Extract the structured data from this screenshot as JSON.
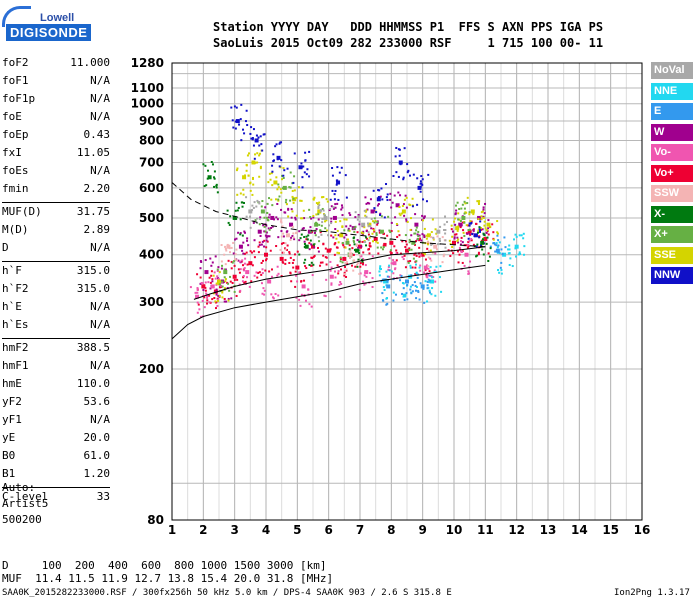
{
  "logo": {
    "top": "Lowell",
    "main": "DIGISONDE"
  },
  "header": {
    "labels_line": "Station YYYY DAY   DDD HHMMSS P1  FFS S AXN PPS IGA PS",
    "values_line": "SaoLuis 2015 Oct09 282 233000 RSF     1 715 100 00- 11"
  },
  "params": [
    {
      "label": "foF2",
      "value": "11.000"
    },
    {
      "label": "foF1",
      "value": "N/A"
    },
    {
      "label": "foF1p",
      "value": "N/A"
    },
    {
      "label": "foE",
      "value": "N/A"
    },
    {
      "label": "foEp",
      "value": "0.43"
    },
    {
      "label": "fxI",
      "value": "11.05"
    },
    {
      "label": "foEs",
      "value": "N/A"
    },
    {
      "label": "fmin",
      "value": "2.20"
    },
    {
      "label": "MUF(D)",
      "value": "31.75"
    },
    {
      "label": "M(D)",
      "value": "2.89"
    },
    {
      "label": "D",
      "value": "N/A"
    },
    {
      "label": "h`F",
      "value": "315.0"
    },
    {
      "label": "h`F2",
      "value": "315.0"
    },
    {
      "label": "h`E",
      "value": "N/A"
    },
    {
      "label": "h`Es",
      "value": "N/A"
    },
    {
      "label": "hmF2",
      "value": "388.5"
    },
    {
      "label": "hmF1",
      "value": "N/A"
    },
    {
      "label": "hmE",
      "value": "110.0"
    },
    {
      "label": "yF2",
      "value": "53.6"
    },
    {
      "label": "yF1",
      "value": "N/A"
    },
    {
      "label": "yE",
      "value": "20.0"
    },
    {
      "label": "B0",
      "value": "61.0"
    },
    {
      "label": "B1",
      "value": "1.20"
    },
    {
      "label": "C-level",
      "value": "33"
    }
  ],
  "auto": {
    "line1": "Auto:",
    "line2": "Artist5",
    "line3": "500200"
  },
  "legend": [
    {
      "label": "NoVal",
      "color": "#a8a8a8"
    },
    {
      "label": "NNE",
      "color": "#22d8f0"
    },
    {
      "label": "E",
      "color": "#3399ee"
    },
    {
      "label": "W",
      "color": "#a0008e"
    },
    {
      "label": "Vo-",
      "color": "#f055b0"
    },
    {
      "label": "Vo+",
      "color": "#ee0033"
    },
    {
      "label": "SSW",
      "color": "#f4b4b4"
    },
    {
      "label": "X-",
      "color": "#007a10"
    },
    {
      "label": "X+",
      "color": "#66b044"
    },
    {
      "label": "SSE",
      "color": "#d4d400"
    },
    {
      "label": "NNW",
      "color": "#1010c8"
    }
  ],
  "bottom": {
    "d_line": "D     100  200  400  600  800 1000 1500 3000 [km]",
    "muf_line": "MUF  11.4 11.5 11.9 12.7 13.8 15.4 20.0 31.8 [MHz]",
    "footer_left": "SAA0K_2015282233000.RSF / 300fx256h 50 kHz 5.0 km / DPS-4 SAA0K 903 / 2.6 S 315.8 E",
    "footer_right": "Ion2Png 1.3.17"
  },
  "chart_data": {
    "type": "scatter",
    "title": "",
    "xlabel": "",
    "ylabel": "",
    "xlim": [
      1,
      16
    ],
    "ylim": [
      80,
      1280
    ],
    "x_ticks": [
      "1",
      "2",
      "3",
      "4",
      "5",
      "6",
      "7",
      "8",
      "9",
      "10",
      "11",
      "12",
      "13",
      "14",
      "15",
      "16"
    ],
    "y_ticks": [
      "80",
      "200",
      "300",
      "400",
      "500",
      "600",
      "700",
      "800",
      "900",
      "1000",
      "1100",
      "1280"
    ],
    "yscale": "log",
    "grid": true,
    "legend_position": "right",
    "series": [
      {
        "name": "Vo+",
        "color": "#ee0033",
        "points": [
          [
            2.0,
            330
          ],
          [
            2.4,
            320
          ],
          [
            3.0,
            350
          ],
          [
            3.5,
            380
          ],
          [
            4.0,
            400
          ],
          [
            4.5,
            390
          ],
          [
            5.0,
            370
          ],
          [
            5.5,
            420
          ],
          [
            6.0,
            410
          ],
          [
            6.5,
            390
          ],
          [
            7.0,
            420
          ],
          [
            7.5,
            440
          ],
          [
            8.0,
            430
          ],
          [
            8.5,
            410
          ],
          [
            9.0,
            400
          ],
          [
            10.0,
            430
          ],
          [
            10.5,
            460
          ],
          [
            11.0,
            440
          ]
        ]
      },
      {
        "name": "W",
        "color": "#a0008e",
        "points": [
          [
            2.1,
            360
          ],
          [
            2.6,
            340
          ],
          [
            3.2,
            420
          ],
          [
            3.8,
            460
          ],
          [
            4.2,
            500
          ],
          [
            4.8,
            480
          ],
          [
            5.4,
            460
          ],
          [
            6.2,
            500
          ],
          [
            6.8,
            470
          ],
          [
            7.4,
            520
          ],
          [
            8.2,
            540
          ],
          [
            8.8,
            480
          ],
          [
            10.2,
            480
          ],
          [
            10.8,
            500
          ]
        ]
      },
      {
        "name": "Vo-",
        "color": "#f055b0",
        "points": [
          [
            1.8,
            310
          ],
          [
            2.3,
            330
          ],
          [
            3.4,
            360
          ],
          [
            4.1,
            340
          ],
          [
            5.2,
            330
          ],
          [
            6.1,
            350
          ],
          [
            7.2,
            360
          ],
          [
            8.1,
            380
          ],
          [
            9.1,
            370
          ],
          [
            10.4,
            400
          ]
        ]
      },
      {
        "name": "SSE",
        "color": "#d4d400",
        "points": [
          [
            2.5,
            340
          ],
          [
            3.3,
            640
          ],
          [
            3.6,
            700
          ],
          [
            4.3,
            620
          ],
          [
            4.9,
            560
          ],
          [
            5.7,
            520
          ],
          [
            6.4,
            450
          ],
          [
            7.3,
            480
          ],
          [
            8.4,
            520
          ],
          [
            9.2,
            450
          ],
          [
            10.1,
            470
          ],
          [
            10.6,
            520
          ],
          [
            11.1,
            480
          ]
        ]
      },
      {
        "name": "X+",
        "color": "#66b044",
        "points": [
          [
            2.7,
            360
          ],
          [
            3.9,
            520
          ],
          [
            4.6,
            600
          ],
          [
            5.6,
            480
          ],
          [
            6.6,
            430
          ],
          [
            7.7,
            460
          ],
          [
            8.7,
            430
          ],
          [
            10.3,
            500
          ]
        ]
      },
      {
        "name": "NNW",
        "color": "#1010c8",
        "points": [
          [
            3.1,
            900
          ],
          [
            3.7,
            800
          ],
          [
            4.4,
            720
          ],
          [
            5.1,
            680
          ],
          [
            6.3,
            620
          ],
          [
            7.6,
            560
          ],
          [
            8.3,
            700
          ],
          [
            8.9,
            600
          ],
          [
            10.7,
            450
          ]
        ]
      },
      {
        "name": "NNE",
        "color": "#22d8f0",
        "points": [
          [
            7.8,
            340
          ],
          [
            8.6,
            350
          ],
          [
            9.3,
            340
          ],
          [
            11.6,
            400
          ],
          [
            12.0,
            420
          ]
        ]
      },
      {
        "name": "E",
        "color": "#3399ee",
        "points": [
          [
            7.9,
            330
          ],
          [
            8.5,
            340
          ],
          [
            9.0,
            330
          ],
          [
            11.4,
            410
          ]
        ]
      },
      {
        "name": "X-",
        "color": "#007a10",
        "points": [
          [
            2.2,
            640
          ],
          [
            3.0,
            500
          ],
          [
            5.3,
            420
          ],
          [
            6.9,
            410
          ],
          [
            10.9,
            430
          ]
        ]
      },
      {
        "name": "SSW",
        "color": "#f4b4b4",
        "points": [
          [
            2.8,
            420
          ],
          [
            4.7,
            450
          ],
          [
            6.7,
            400
          ],
          [
            9.4,
            420
          ]
        ]
      },
      {
        "name": "NoVal",
        "color": "#a8a8a8",
        "points": [
          [
            3.5,
            520
          ],
          [
            5.9,
            500
          ],
          [
            7.1,
            480
          ],
          [
            9.5,
            460
          ]
        ]
      }
    ],
    "curves": [
      {
        "name": "dashed-upper",
        "style": "dashed",
        "points": [
          [
            1.0,
            620
          ],
          [
            1.6,
            560
          ],
          [
            2.4,
            520
          ],
          [
            3.2,
            500
          ],
          [
            4.0,
            480
          ],
          [
            5.0,
            465
          ],
          [
            6.0,
            460
          ],
          [
            7.0,
            450
          ],
          [
            8.0,
            440
          ],
          [
            9.0,
            430
          ],
          [
            10.0,
            425
          ],
          [
            11.0,
            420
          ]
        ]
      },
      {
        "name": "trace-lower",
        "style": "solid",
        "points": [
          [
            1.0,
            240
          ],
          [
            1.5,
            262
          ],
          [
            2.0,
            275
          ],
          [
            3.0,
            290
          ],
          [
            4.0,
            300
          ],
          [
            5.0,
            310
          ],
          [
            6.0,
            320
          ],
          [
            7.0,
            335
          ],
          [
            8.0,
            345
          ],
          [
            9.0,
            355
          ],
          [
            10.0,
            365
          ],
          [
            11.0,
            375
          ]
        ]
      },
      {
        "name": "trace-mid",
        "style": "solid",
        "points": [
          [
            1.7,
            305
          ],
          [
            2.2,
            315
          ],
          [
            3.0,
            330
          ],
          [
            4.0,
            345
          ],
          [
            5.0,
            355
          ],
          [
            6.0,
            365
          ],
          [
            7.0,
            385
          ],
          [
            8.0,
            400
          ],
          [
            9.0,
            405
          ],
          [
            10.0,
            410
          ],
          [
            11.0,
            420
          ]
        ]
      }
    ]
  }
}
